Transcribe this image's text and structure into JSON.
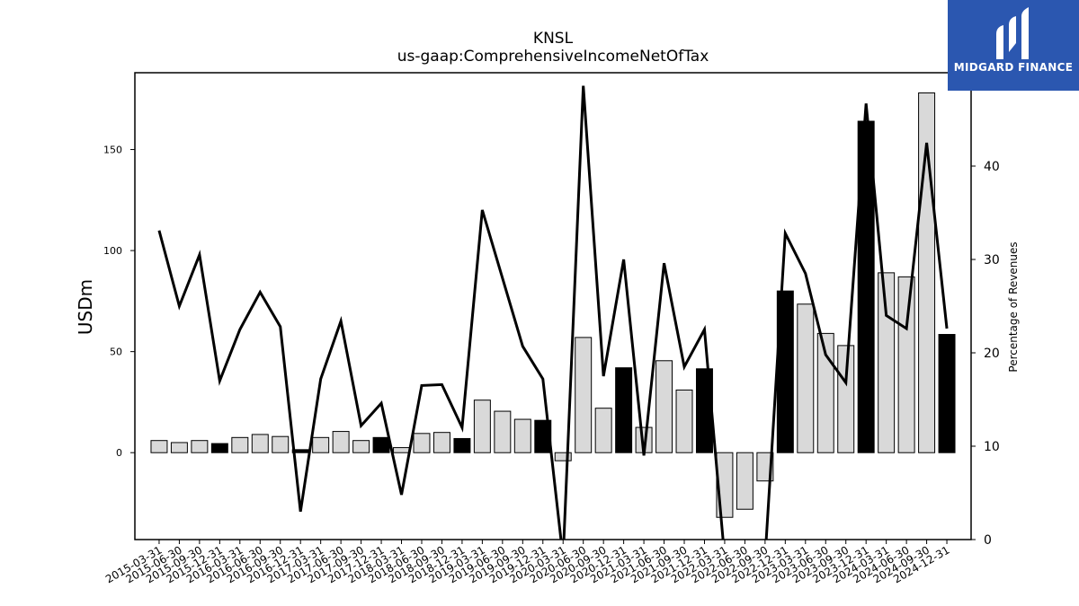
{
  "chart_data": {
    "type": "bar",
    "title": "KNSL",
    "subtitle": "us-gaap:ComprehensiveIncomeNetOfTax",
    "ylabel": "USDm",
    "y2label": "Percentage of Revenues",
    "ylim": [
      -43,
      188
    ],
    "y2lim": [
      0,
      50
    ],
    "yticks": [
      0,
      50,
      100,
      150
    ],
    "y2ticks": [
      0,
      10,
      20,
      30,
      40,
      50
    ],
    "categories": [
      "2015-03-31",
      "2015-06-30",
      "2015-09-30",
      "2015-12-31",
      "2016-03-31",
      "2016-06-30",
      "2016-09-30",
      "2016-12-31",
      "2017-03-31",
      "2017-06-30",
      "2017-09-30",
      "2017-12-31",
      "2018-03-31",
      "2018-06-30",
      "2018-09-30",
      "2018-12-31",
      "2019-03-31",
      "2019-06-30",
      "2019-09-30",
      "2019-12-31",
      "2020-03-31",
      "2020-06-30",
      "2020-09-30",
      "2020-12-31",
      "2021-03-31",
      "2021-06-30",
      "2021-09-30",
      "2021-12-31",
      "2022-03-31",
      "2022-06-30",
      "2022-09-30",
      "2022-12-31",
      "2023-03-31",
      "2023-06-30",
      "2023-09-30",
      "2023-12-31",
      "2024-03-31",
      "2024-06-30",
      "2024-09-30",
      "2024-12-31"
    ],
    "series": [
      {
        "kind": "bar",
        "values": [
          6,
          5,
          6,
          4.5,
          7.5,
          9,
          8,
          1.5,
          7.5,
          10.5,
          6,
          7.5,
          2.5,
          9.5,
          10,
          7,
          26,
          20.5,
          16.5,
          16,
          -4,
          57,
          22,
          42,
          12.5,
          45.5,
          31,
          41.5,
          -32,
          -28,
          -14,
          80,
          73.5,
          59,
          53,
          164,
          89,
          87,
          178,
          58.5
        ],
        "highlight": [
          false,
          false,
          false,
          true,
          false,
          false,
          false,
          true,
          false,
          false,
          false,
          true,
          false,
          false,
          false,
          true,
          false,
          false,
          false,
          true,
          false,
          false,
          false,
          true,
          false,
          false,
          false,
          true,
          false,
          false,
          false,
          true,
          false,
          false,
          false,
          true,
          false,
          false,
          false,
          true
        ]
      },
      {
        "kind": "line",
        "axis": "right",
        "values": [
          33.1,
          25.0,
          30.5,
          17.0,
          22.5,
          26.5,
          22.8,
          3.0,
          17.2,
          23.4,
          12.2,
          14.6,
          4.8,
          16.5,
          16.6,
          12.0,
          35.3,
          28.0,
          20.7,
          17.2,
          -2.0,
          48.6,
          17.5,
          30.0,
          9.0,
          29.6,
          18.5,
          22.5,
          -2.0,
          -2.0,
          -2.0,
          32.8,
          28.5,
          19.8,
          16.8,
          46.7,
          24.0,
          22.6,
          42.5,
          22.6
        ]
      }
    ],
    "colors": {
      "bar": "#d9d9d9",
      "bar_highlight": "#000000",
      "line": "#000000",
      "axis": "#000000"
    }
  },
  "brand": {
    "name": "MIDGARD FINANCE",
    "bg": "#2b57b0"
  }
}
